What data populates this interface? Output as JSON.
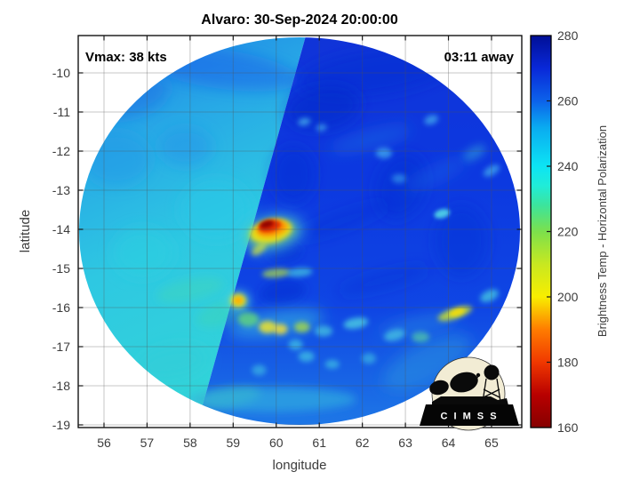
{
  "page": {
    "background": "#ffffff"
  },
  "title": "Alvaro: 30-Sep-2024 20:00:00",
  "annotations": {
    "vmax_label": "Vmax: 38 kts",
    "eta_label": "03:11 away"
  },
  "storm": {
    "name": "Alvaro",
    "datetime": "30-Sep-2024 20:00:00",
    "vmax_kts": 38,
    "time_away": "03:11"
  },
  "logo": {
    "name": "CIMSS",
    "text": "C I M S S"
  },
  "chart_data": {
    "type": "heatmap",
    "title": "Alvaro: 30-Sep-2024 20:00:00",
    "annotation_left": "Vmax: 38 kts",
    "annotation_right": "03:11 away",
    "xlabel": "longitude",
    "ylabel": "latitude",
    "xlim": [
      55.4,
      65.7
    ],
    "ylim": [
      -19.1,
      -9.0
    ],
    "x_ticks": [
      56,
      57,
      58,
      59,
      60,
      61,
      62,
      63,
      64,
      65
    ],
    "y_ticks": [
      -10,
      -11,
      -12,
      -13,
      -14,
      -15,
      -16,
      -17,
      -18,
      -19
    ],
    "grid": true,
    "colorbar": {
      "label": "Brightness Temp - Horizontal Polarization",
      "range": [
        160,
        280
      ],
      "ticks": [
        280,
        260,
        240,
        220,
        200,
        180,
        160
      ],
      "stops": [
        [
          160,
          "#860000"
        ],
        [
          170,
          "#B80000"
        ],
        [
          180,
          "#F03800"
        ],
        [
          190,
          "#FF7C00"
        ],
        [
          200,
          "#F8EE00"
        ],
        [
          210,
          "#C8E820"
        ],
        [
          220,
          "#7CE04C"
        ],
        [
          228,
          "#3CE49C"
        ],
        [
          234,
          "#20ECD8"
        ],
        [
          240,
          "#0CE4F4"
        ],
        [
          252,
          "#0AAAF0"
        ],
        [
          260,
          "#0C62EA"
        ],
        [
          270,
          "#0928D8"
        ],
        [
          280,
          "#000F96"
        ]
      ]
    },
    "swath": {
      "description": "Circular microwave imager field of view centered on the storm; a diagonal scan-edge separates a warmer (cyan, ~240-245 K) western swath from a cooler-looking (blue, ~253-260 K) eastern swath.",
      "center_lonlat": [
        60.55,
        -14.05
      ],
      "radius_deg": 5.1,
      "boundary": {
        "top_lonlat": [
          60.7,
          -9.0
        ],
        "bottom_lonlat": [
          58.15,
          -19.05
        ]
      },
      "west_swath_mean_temp_k": 243,
      "east_swath_mean_temp_k": 256
    },
    "features": [
      {
        "name": "deep-convection-core",
        "lon": 59.85,
        "lat": -13.9,
        "temp_k": 163
      },
      {
        "name": "convective-burst-orange-ring",
        "lon": 59.9,
        "lat": -13.95,
        "temp_k": 185
      },
      {
        "name": "convective-burst-yellow-halo",
        "lon": 59.9,
        "lat": -14.05,
        "temp_k": 203
      },
      {
        "name": "boundary-hot-spot",
        "lon": 59.1,
        "lat": -15.8,
        "temp_k": 193
      },
      {
        "name": "inner-rainband-yellow",
        "lon": 59.8,
        "lat": -16.5,
        "temp_k": 205
      },
      {
        "name": "inner-rainband-green",
        "lon": 59.35,
        "lat": -16.3,
        "temp_k": 220
      },
      {
        "name": "outer-rainband-east-yellow",
        "lon": 64.15,
        "lat": -16.15,
        "temp_k": 210
      },
      {
        "name": "outer-rainband-arc-cyan",
        "lon": 62.7,
        "lat": -16.6,
        "temp_k": 233
      },
      {
        "name": "bright-cyan-spot-east",
        "lon": 63.85,
        "lat": -13.6,
        "temp_k": 236
      }
    ],
    "blobs": [
      [
        58.7,
        -9.9,
        90,
        22,
        8,
        "#1856E8",
        0.45,
        8
      ],
      [
        62.3,
        -10.0,
        90,
        25,
        -8,
        "#0B2AD0",
        0.45,
        8
      ],
      [
        56.6,
        -10.6,
        45,
        22,
        -15,
        "#1B74E4",
        0.6,
        8
      ],
      [
        57.9,
        -11.9,
        30,
        22,
        0,
        "#2190E8",
        0.45,
        8
      ],
      [
        56.3,
        -12.2,
        38,
        30,
        0,
        "#2398E8",
        0.5,
        8
      ],
      [
        58.6,
        -13.5,
        40,
        34,
        0,
        "#2CC8E8",
        0.55,
        8
      ],
      [
        56.9,
        -14.6,
        34,
        28,
        0,
        "#2ED0E0",
        0.5,
        8
      ],
      [
        58.0,
        -15.55,
        38,
        12,
        -12,
        "#3FD8B8",
        0.45,
        5
      ],
      [
        58.75,
        -16.15,
        30,
        13,
        -18,
        "#42D8B0",
        0.4,
        5
      ],
      [
        57.6,
        -17.4,
        40,
        18,
        -10,
        "#31CCD8",
        0.5,
        8
      ],
      [
        58.9,
        -18.3,
        36,
        10,
        -8,
        "#48D8A8",
        0.5,
        5
      ],
      [
        61.1,
        -10.9,
        42,
        24,
        -10,
        "#0826C8",
        0.55,
        8
      ],
      [
        62.9,
        -12.9,
        28,
        38,
        20,
        "#0A2CD0",
        0.45,
        8
      ],
      [
        60.4,
        -12.6,
        24,
        32,
        0,
        "#0A2CD0",
        0.45,
        8
      ],
      [
        64.3,
        -14.3,
        30,
        40,
        0,
        "#0C30D4",
        0.4,
        8
      ],
      [
        61.5,
        -13.8,
        60,
        10,
        -20,
        "#0A2CD0",
        0.3,
        8
      ],
      [
        62.5,
        -15.3,
        55,
        10,
        -15,
        "#0A2CD0",
        0.3,
        8
      ],
      [
        60.2,
        -14.6,
        20,
        10,
        -10,
        "#0A2ED0",
        0.5,
        5
      ],
      [
        60.15,
        -15.6,
        26,
        14,
        -8,
        "#0A2ED0",
        0.5,
        5
      ],
      [
        63.5,
        -17.4,
        55,
        22,
        -28,
        "#2E96E0",
        0.5,
        8
      ],
      [
        59.9,
        -18.35,
        95,
        14,
        0,
        "#2FB0E0",
        0.65,
        5
      ],
      [
        62.2,
        -11.7,
        48,
        9,
        -15,
        "#2E86E8",
        0.35,
        8
      ],
      [
        63.7,
        -12.6,
        38,
        8,
        -25,
        "#2E86E8",
        0.3,
        8
      ],
      [
        60.65,
        -11.25,
        7,
        4,
        -10,
        "#4FC0F0",
        0.7,
        3
      ],
      [
        61.05,
        -11.4,
        6,
        4,
        -10,
        "#4FC0F0",
        0.6,
        3
      ],
      [
        63.6,
        -11.2,
        8,
        5,
        -20,
        "#46B4EE",
        0.7,
        3
      ],
      [
        62.5,
        -12.05,
        9,
        6,
        0,
        "#46B4EE",
        0.7,
        3
      ],
      [
        62.85,
        -12.7,
        8,
        5,
        0,
        "#3EA8EC",
        0.6,
        3
      ],
      [
        65.0,
        -12.5,
        10,
        5,
        -30,
        "#46B4EE",
        0.7,
        3
      ],
      [
        64.6,
        -12.05,
        14,
        6,
        -30,
        "#3CC0D8",
        0.5,
        5
      ],
      [
        63.85,
        -13.6,
        9,
        5,
        -15,
        "#55E0E8",
        0.85,
        2
      ],
      [
        59.9,
        -14.1,
        38,
        22,
        -12,
        "#3FC8E0",
        0.5,
        8
      ],
      [
        59.9,
        -14.1,
        30,
        16,
        -12,
        "#7ADC6A",
        0.5,
        5
      ],
      [
        59.88,
        -14.05,
        24,
        13,
        -12,
        "#FFE800",
        0.85,
        3
      ],
      [
        59.6,
        -14.5,
        10,
        5,
        -40,
        "#CCE23C",
        0.75,
        3
      ],
      [
        59.9,
        -13.98,
        18,
        9,
        -12,
        "#FF9000",
        0.9,
        3
      ],
      [
        59.85,
        -13.92,
        13,
        6.5,
        -12,
        "#E02800",
        0.95,
        2
      ],
      [
        59.78,
        -13.87,
        8,
        4,
        -15,
        "#8C0000",
        0.95,
        2
      ],
      [
        60.0,
        -15.12,
        16,
        5,
        -5,
        "#B4E43C",
        0.7,
        3
      ],
      [
        60.55,
        -15.1,
        14,
        5,
        -5,
        "#46CCE0",
        0.7,
        3
      ],
      [
        59.12,
        -15.82,
        14,
        12,
        0,
        "#50D0D8",
        0.6,
        5
      ],
      [
        59.12,
        -15.82,
        9,
        8,
        0,
        "#FFE400",
        0.8,
        3
      ],
      [
        59.12,
        -15.82,
        5,
        4,
        0,
        "#FFB000",
        0.95,
        2
      ],
      [
        60.0,
        -16.4,
        55,
        14,
        -8,
        "#38C0E0",
        0.55,
        8
      ],
      [
        59.35,
        -16.3,
        12,
        8,
        0,
        "#62D87A",
        0.8,
        3
      ],
      [
        59.8,
        -16.5,
        10,
        7,
        0,
        "#F0E42C",
        0.85,
        3
      ],
      [
        60.1,
        -16.55,
        8,
        6,
        0,
        "#FFE42A",
        0.8,
        3
      ],
      [
        60.6,
        -16.5,
        9,
        6,
        0,
        "#A8DC46",
        0.8,
        3
      ],
      [
        61.1,
        -16.6,
        10,
        6,
        0,
        "#48CCE0",
        0.7,
        3
      ],
      [
        61.85,
        -16.4,
        14,
        6,
        -10,
        "#4CD0E2",
        0.8,
        3
      ],
      [
        62.75,
        -16.7,
        12,
        6,
        -15,
        "#4CD0E2",
        0.75,
        3
      ],
      [
        63.35,
        -16.75,
        10,
        6,
        0,
        "#5AD49C",
        0.7,
        3
      ],
      [
        63.3,
        -16.45,
        45,
        10,
        -12,
        "#2F9CE0",
        0.4,
        8
      ],
      [
        64.15,
        -16.15,
        20,
        6,
        -18,
        "#C8E030",
        0.85,
        3
      ],
      [
        64.2,
        -16.12,
        9,
        4,
        -18,
        "#FFE000",
        0.8,
        2
      ],
      [
        64.95,
        -15.7,
        11,
        6,
        -25,
        "#48CCE0",
        0.75,
        3
      ],
      [
        60.45,
        -16.95,
        8,
        6,
        0,
        "#44C8E4",
        0.7,
        3
      ],
      [
        60.7,
        -17.25,
        9,
        6,
        0,
        "#44C8E4",
        0.7,
        3
      ],
      [
        61.3,
        -17.45,
        8,
        5,
        0,
        "#44C8E4",
        0.65,
        3
      ],
      [
        62.15,
        -17.3,
        8,
        6,
        0,
        "#40C4E2",
        0.6,
        3
      ],
      [
        59.6,
        -17.6,
        8,
        6,
        0,
        "#40C4E2",
        0.6,
        3
      ]
    ]
  }
}
